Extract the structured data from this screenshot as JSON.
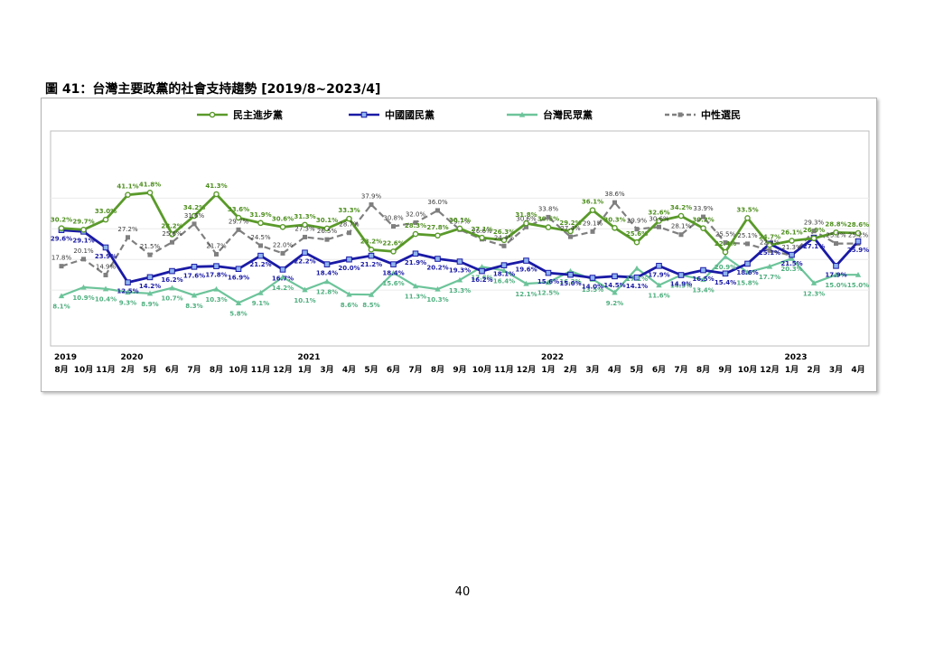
{
  "figure_title": "圖 41：台灣主要政黨的社會支持趨勢  [2019/8~2023/4]",
  "page_number": "40",
  "colors": {
    "dpp": "#5a9a2a",
    "kmt": "#1a1aa6",
    "tpp": "#6cc49a",
    "neutral": "#7f7f7f"
  },
  "chart_data": {
    "type": "line",
    "x": [
      "8月",
      "10月",
      "11月",
      "2月",
      "5月",
      "6月",
      "7月",
      "8月",
      "10月",
      "11月",
      "12月",
      "1月",
      "3月",
      "4月",
      "5月",
      "6月",
      "7月",
      "8月",
      "9月",
      "10月",
      "11月",
      "12月",
      "1月",
      "2月",
      "3月",
      "4月",
      "5月",
      "6月",
      "7月",
      "8月",
      "9月",
      "10月",
      "12月",
      "1月",
      "2月",
      "3月",
      "4月"
    ],
    "year_labels": [
      {
        "index": 0,
        "label": "2019"
      },
      {
        "index": 3,
        "label": "2020"
      },
      {
        "index": 11,
        "label": "2021"
      },
      {
        "index": 22,
        "label": "2022"
      },
      {
        "index": 33,
        "label": "2023"
      }
    ],
    "series": [
      {
        "name": "民主進步黨",
        "key": "dpp",
        "color": "#5a9a2a",
        "marker": "circle",
        "values": [
          30.2,
          29.7,
          33.0,
          41.1,
          41.8,
          28.2,
          34.2,
          41.3,
          33.6,
          31.9,
          30.6,
          31.3,
          30.1,
          33.3,
          23.2,
          22.6,
          28.3,
          27.8,
          30.1,
          27.1,
          26.3,
          31.8,
          30.5,
          29.2,
          36.1,
          30.3,
          25.6,
          32.6,
          34.2,
          30.2,
          22.4,
          33.5,
          24.7,
          26.1,
          26.9,
          28.8,
          28.6
        ]
      },
      {
        "name": "中國國民黨",
        "key": "kmt",
        "color": "#1a1aa6",
        "marker": "square",
        "values": [
          29.6,
          29.1,
          23.9,
          12.5,
          14.2,
          16.2,
          17.6,
          17.8,
          16.9,
          21.2,
          16.7,
          22.2,
          18.4,
          20.0,
          21.2,
          18.4,
          21.9,
          20.2,
          19.3,
          16.2,
          18.1,
          19.6,
          15.6,
          15.0,
          14.0,
          14.5,
          14.1,
          17.9,
          14.9,
          16.5,
          15.4,
          18.6,
          25.1,
          21.5,
          27.1,
          17.9,
          25.9
        ]
      },
      {
        "name": "台灣民眾黨",
        "key": "tpp",
        "color": "#6cc49a",
        "marker": "triangle",
        "values": [
          8.1,
          10.9,
          10.4,
          9.3,
          8.9,
          10.7,
          8.3,
          10.3,
          5.8,
          9.1,
          14.2,
          10.1,
          12.8,
          8.6,
          8.5,
          15.6,
          11.3,
          10.3,
          13.3,
          17.6,
          16.4,
          12.1,
          12.5,
          16.2,
          13.5,
          9.2,
          17.1,
          11.6,
          14.9,
          13.4,
          20.9,
          15.8,
          17.7,
          20.3,
          12.3,
          15.0,
          15.0
        ]
      },
      {
        "name": "中性選民",
        "key": "neutral",
        "color": "#7f7f7f",
        "marker": "square",
        "dash": true,
        "values": [
          17.8,
          20.1,
          14.9,
          27.2,
          21.5,
          25.6,
          31.6,
          21.7,
          29.7,
          24.5,
          22.0,
          27.3,
          26.5,
          28.7,
          37.9,
          30.8,
          32.0,
          36.0,
          29.7,
          26.6,
          24.4,
          30.6,
          33.8,
          27.4,
          29.1,
          38.6,
          29.9,
          30.6,
          28.1,
          33.9,
          25.5,
          25.1,
          22.9,
          21.3,
          29.3,
          25.2,
          25.2
        ]
      }
    ],
    "ylim": [
      0,
      50
    ],
    "grid": "horizontal",
    "legend_position": "top"
  }
}
